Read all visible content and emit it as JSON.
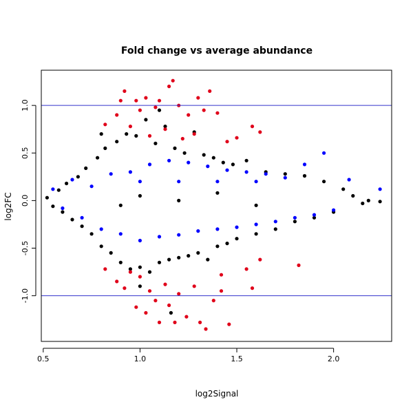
{
  "chart_data": {
    "type": "scatter",
    "title": "Fold change vs average abundance",
    "xlabel": "log2Signal",
    "ylabel": "log2FC",
    "xlim": [
      0.49,
      2.3
    ],
    "ylim": [
      -1.48,
      1.37
    ],
    "x_ticks": [
      0.5,
      1.0,
      1.5,
      2.0
    ],
    "x_tick_labels": [
      "0.5",
      "1.0",
      "1.5",
      "2.0"
    ],
    "y_ticks": [
      -1.0,
      -0.5,
      0.0,
      0.5,
      1.0
    ],
    "y_tick_labels": [
      "-1.0",
      "-0.5",
      "0.0",
      "0.5",
      "1.0"
    ],
    "reference_lines": [
      {
        "y": 1.0,
        "color": "#3333cc"
      },
      {
        "y": -1.0,
        "color": "#3333cc"
      }
    ],
    "grid": false,
    "legend": "none",
    "series": [
      {
        "color": "#000000",
        "values": [
          {
            "x": 0.52,
            "y": 0.03
          },
          {
            "x": 0.55,
            "y": -0.06
          },
          {
            "x": 0.58,
            "y": 0.11
          },
          {
            "x": 0.6,
            "y": -0.12
          },
          {
            "x": 0.62,
            "y": 0.18
          },
          {
            "x": 0.65,
            "y": -0.2
          },
          {
            "x": 0.68,
            "y": 0.25
          },
          {
            "x": 0.7,
            "y": -0.27
          },
          {
            "x": 0.72,
            "y": 0.34
          },
          {
            "x": 0.75,
            "y": -0.35
          },
          {
            "x": 0.78,
            "y": 0.45
          },
          {
            "x": 0.8,
            "y": -0.48
          },
          {
            "x": 0.82,
            "y": 0.55
          },
          {
            "x": 0.85,
            "y": -0.55
          },
          {
            "x": 0.88,
            "y": 0.62
          },
          {
            "x": 0.9,
            "y": -0.65
          },
          {
            "x": 0.93,
            "y": 0.7
          },
          {
            "x": 0.95,
            "y": -0.72
          },
          {
            "x": 0.98,
            "y": 0.68
          },
          {
            "x": 1.0,
            "y": -0.7
          },
          {
            "x": 1.03,
            "y": 0.85
          },
          {
            "x": 1.05,
            "y": -0.75
          },
          {
            "x": 1.08,
            "y": 0.6
          },
          {
            "x": 1.1,
            "y": -0.65
          },
          {
            "x": 1.13,
            "y": 0.78
          },
          {
            "x": 1.15,
            "y": -0.62
          },
          {
            "x": 1.18,
            "y": 0.55
          },
          {
            "x": 1.2,
            "y": -0.6
          },
          {
            "x": 1.23,
            "y": 0.5
          },
          {
            "x": 1.25,
            "y": -0.58
          },
          {
            "x": 1.28,
            "y": 0.72
          },
          {
            "x": 1.3,
            "y": -0.55
          },
          {
            "x": 1.33,
            "y": 0.48
          },
          {
            "x": 1.35,
            "y": -0.62
          },
          {
            "x": 1.38,
            "y": 0.45
          },
          {
            "x": 1.4,
            "y": -0.48
          },
          {
            "x": 1.43,
            "y": 0.4
          },
          {
            "x": 1.45,
            "y": -0.45
          },
          {
            "x": 1.48,
            "y": 0.38
          },
          {
            "x": 1.5,
            "y": -0.4
          },
          {
            "x": 1.55,
            "y": 0.42
          },
          {
            "x": 1.6,
            "y": -0.35
          },
          {
            "x": 1.65,
            "y": 0.3
          },
          {
            "x": 1.7,
            "y": -0.3
          },
          {
            "x": 1.75,
            "y": 0.28
          },
          {
            "x": 1.8,
            "y": -0.22
          },
          {
            "x": 1.85,
            "y": 0.26
          },
          {
            "x": 1.9,
            "y": -0.18
          },
          {
            "x": 1.95,
            "y": 0.2
          },
          {
            "x": 2.0,
            "y": -0.12
          },
          {
            "x": 2.05,
            "y": 0.12
          },
          {
            "x": 2.1,
            "y": 0.05
          },
          {
            "x": 2.15,
            "y": -0.03
          },
          {
            "x": 2.18,
            "y": 0.0
          },
          {
            "x": 2.24,
            "y": -0.01
          },
          {
            "x": 1.0,
            "y": 0.05
          },
          {
            "x": 1.2,
            "y": 0.0
          },
          {
            "x": 0.9,
            "y": -0.05
          },
          {
            "x": 1.4,
            "y": 0.08
          },
          {
            "x": 1.6,
            "y": -0.05
          },
          {
            "x": 1.16,
            "y": -1.18
          },
          {
            "x": 0.8,
            "y": 0.7
          },
          {
            "x": 1.1,
            "y": 0.95
          },
          {
            "x": 1.0,
            "y": -0.9
          }
        ]
      },
      {
        "color": "#0000ff",
        "values": [
          {
            "x": 0.55,
            "y": 0.12
          },
          {
            "x": 0.6,
            "y": -0.08
          },
          {
            "x": 0.65,
            "y": 0.22
          },
          {
            "x": 0.7,
            "y": -0.18
          },
          {
            "x": 0.75,
            "y": 0.15
          },
          {
            "x": 0.8,
            "y": -0.3
          },
          {
            "x": 0.85,
            "y": 0.28
          },
          {
            "x": 0.9,
            "y": -0.35
          },
          {
            "x": 0.95,
            "y": 0.3
          },
          {
            "x": 1.0,
            "y": -0.42
          },
          {
            "x": 1.05,
            "y": 0.38
          },
          {
            "x": 1.1,
            "y": -0.38
          },
          {
            "x": 1.15,
            "y": 0.42
          },
          {
            "x": 1.2,
            "y": -0.36
          },
          {
            "x": 1.25,
            "y": 0.4
          },
          {
            "x": 1.3,
            "y": -0.32
          },
          {
            "x": 1.35,
            "y": 0.36
          },
          {
            "x": 1.4,
            "y": -0.3
          },
          {
            "x": 1.45,
            "y": 0.32
          },
          {
            "x": 1.5,
            "y": -0.28
          },
          {
            "x": 1.55,
            "y": 0.3
          },
          {
            "x": 1.6,
            "y": -0.25
          },
          {
            "x": 1.65,
            "y": 0.28
          },
          {
            "x": 1.7,
            "y": -0.22
          },
          {
            "x": 1.75,
            "y": 0.24
          },
          {
            "x": 1.8,
            "y": -0.18
          },
          {
            "x": 1.85,
            "y": 0.38
          },
          {
            "x": 1.9,
            "y": -0.15
          },
          {
            "x": 1.95,
            "y": 0.5
          },
          {
            "x": 2.0,
            "y": -0.1
          },
          {
            "x": 2.08,
            "y": 0.22
          },
          {
            "x": 2.24,
            "y": 0.12
          },
          {
            "x": 1.6,
            "y": 0.2
          },
          {
            "x": 1.4,
            "y": 0.2
          },
          {
            "x": 1.2,
            "y": 0.2
          },
          {
            "x": 1.0,
            "y": 0.2
          }
        ]
      },
      {
        "color": "#e0001a",
        "values": [
          {
            "x": 0.82,
            "y": 0.8
          },
          {
            "x": 0.88,
            "y": 0.9
          },
          {
            "x": 0.9,
            "y": 1.05
          },
          {
            "x": 0.92,
            "y": 1.15
          },
          {
            "x": 0.95,
            "y": 0.78
          },
          {
            "x": 0.98,
            "y": 1.05
          },
          {
            "x": 1.0,
            "y": 0.95
          },
          {
            "x": 1.03,
            "y": 1.08
          },
          {
            "x": 1.05,
            "y": 0.68
          },
          {
            "x": 1.08,
            "y": 0.98
          },
          {
            "x": 1.1,
            "y": 1.05
          },
          {
            "x": 1.13,
            "y": 0.75
          },
          {
            "x": 1.15,
            "y": 1.2
          },
          {
            "x": 1.17,
            "y": 1.26
          },
          {
            "x": 1.2,
            "y": 1.0
          },
          {
            "x": 1.22,
            "y": 0.65
          },
          {
            "x": 1.25,
            "y": 0.9
          },
          {
            "x": 1.28,
            "y": 0.7
          },
          {
            "x": 1.3,
            "y": 1.08
          },
          {
            "x": 1.33,
            "y": 0.95
          },
          {
            "x": 1.36,
            "y": 1.15
          },
          {
            "x": 1.4,
            "y": 0.92
          },
          {
            "x": 1.45,
            "y": 0.62
          },
          {
            "x": 1.5,
            "y": 0.66
          },
          {
            "x": 1.58,
            "y": 0.78
          },
          {
            "x": 1.62,
            "y": 0.72
          },
          {
            "x": 0.82,
            "y": -0.72
          },
          {
            "x": 0.88,
            "y": -0.85
          },
          {
            "x": 0.92,
            "y": -0.92
          },
          {
            "x": 0.95,
            "y": -0.75
          },
          {
            "x": 0.98,
            "y": -1.12
          },
          {
            "x": 1.0,
            "y": -0.8
          },
          {
            "x": 1.03,
            "y": -1.18
          },
          {
            "x": 1.05,
            "y": -0.95
          },
          {
            "x": 1.08,
            "y": -1.05
          },
          {
            "x": 1.1,
            "y": -1.28
          },
          {
            "x": 1.13,
            "y": -0.88
          },
          {
            "x": 1.15,
            "y": -1.1
          },
          {
            "x": 1.18,
            "y": -1.28
          },
          {
            "x": 1.2,
            "y": -0.98
          },
          {
            "x": 1.24,
            "y": -1.22
          },
          {
            "x": 1.28,
            "y": -0.9
          },
          {
            "x": 1.31,
            "y": -1.28
          },
          {
            "x": 1.34,
            "y": -1.35
          },
          {
            "x": 1.38,
            "y": -1.05
          },
          {
            "x": 1.42,
            "y": -0.78
          },
          {
            "x": 1.46,
            "y": -1.3
          },
          {
            "x": 1.55,
            "y": -0.72
          },
          {
            "x": 1.58,
            "y": -0.92
          },
          {
            "x": 1.62,
            "y": -0.62
          },
          {
            "x": 1.82,
            "y": -0.68
          },
          {
            "x": 1.42,
            "y": -0.95
          }
        ]
      }
    ]
  }
}
